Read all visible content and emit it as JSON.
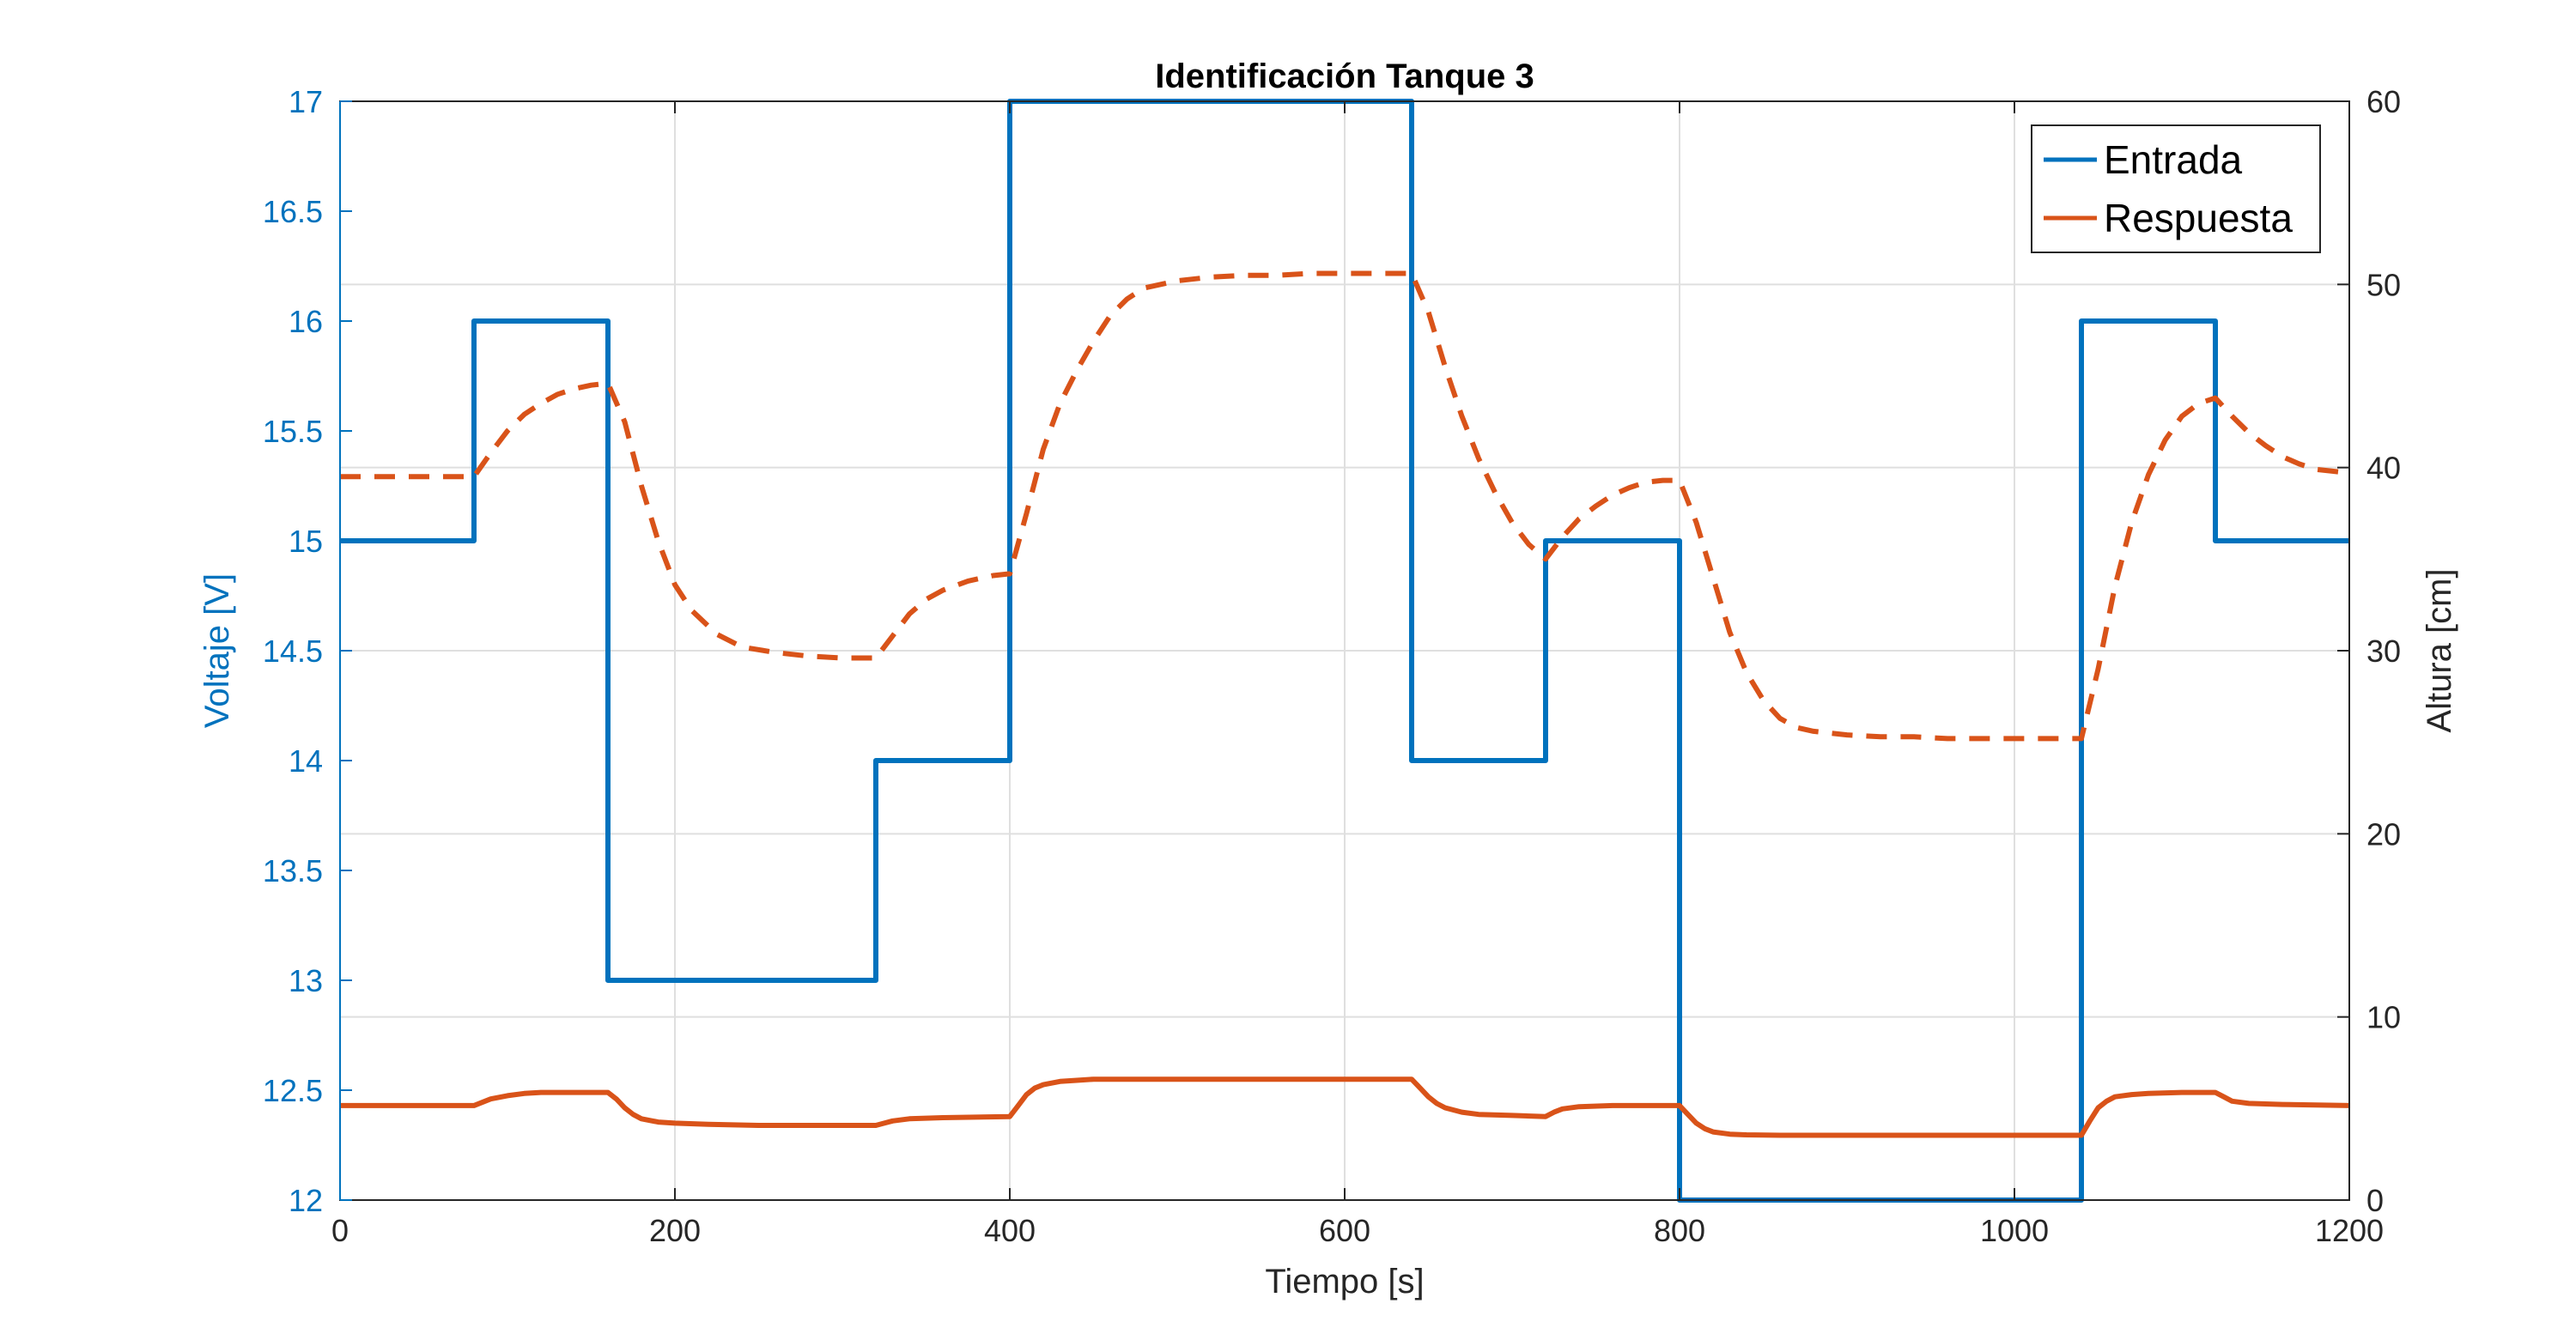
{
  "chart_data": {
    "type": "line",
    "title": "Identificación Tanque 3",
    "xlabel": "Tiempo [s]",
    "ylabel_left": "Voltaje [V]",
    "ylabel_right": "Altura [cm]",
    "xlim": [
      0,
      1200
    ],
    "ylim_left": [
      12,
      17
    ],
    "ylim_right": [
      0,
      60
    ],
    "x_ticks": [
      0,
      200,
      400,
      600,
      800,
      1000,
      1200
    ],
    "y_left_ticks": [
      12,
      12.5,
      13,
      13.5,
      14,
      14.5,
      15,
      15.5,
      16,
      16.5,
      17
    ],
    "y_right_ticks": [
      0,
      10,
      20,
      30,
      40,
      50,
      60
    ],
    "grid": true,
    "legend_position": "top-right",
    "colors": {
      "entrada": "#0072BD",
      "respuesta": "#D95319",
      "left_axis": "#0072BD",
      "right_axis": "#262626"
    },
    "legend": [
      "Entrada",
      "Respuesta"
    ],
    "series": [
      {
        "name": "Entrada",
        "axis": "left",
        "style": "solid",
        "x": [
          0,
          80,
          80,
          160,
          160,
          320,
          320,
          400,
          400,
          640,
          640,
          720,
          720,
          800,
          800,
          1040,
          1040,
          1120,
          1120,
          1200
        ],
        "y": [
          15,
          15,
          16,
          16,
          13,
          13,
          14,
          14,
          17,
          17,
          14,
          14,
          15,
          15,
          12,
          12,
          16,
          16,
          15,
          15
        ]
      },
      {
        "name": "Respuesta",
        "axis": "right",
        "style": "dashed",
        "x": [
          0,
          80,
          90,
          100,
          110,
          120,
          130,
          140,
          150,
          160,
          170,
          180,
          190,
          200,
          210,
          225,
          240,
          260,
          280,
          300,
          320,
          330,
          340,
          350,
          360,
          375,
          390,
          400,
          410,
          420,
          430,
          440,
          450,
          460,
          470,
          480,
          500,
          520,
          540,
          560,
          580,
          600,
          620,
          640,
          650,
          660,
          670,
          680,
          690,
          700,
          710,
          720,
          730,
          740,
          750,
          760,
          770,
          780,
          790,
          800,
          810,
          820,
          830,
          840,
          850,
          860,
          870,
          880,
          900,
          920,
          940,
          960,
          980,
          1000,
          1020,
          1040,
          1050,
          1060,
          1070,
          1080,
          1090,
          1100,
          1110,
          1120,
          1130,
          1140,
          1150,
          1160,
          1170,
          1180,
          1190,
          1200
        ],
        "y": [
          39.5,
          39.5,
          40.8,
          42.0,
          42.9,
          43.5,
          44.0,
          44.3,
          44.5,
          44.6,
          42.5,
          39.0,
          36.0,
          33.6,
          32.2,
          30.9,
          30.2,
          29.9,
          29.7,
          29.6,
          29.6,
          30.8,
          32.0,
          32.8,
          33.3,
          33.8,
          34.1,
          34.2,
          37.5,
          41.0,
          43.5,
          45.3,
          46.9,
          48.3,
          49.2,
          49.8,
          50.2,
          50.4,
          50.5,
          50.5,
          50.6,
          50.6,
          50.6,
          50.6,
          48.5,
          45.5,
          42.8,
          40.5,
          38.6,
          37.0,
          35.8,
          35.0,
          36.2,
          37.2,
          37.9,
          38.5,
          38.9,
          39.2,
          39.3,
          39.3,
          37.0,
          34.0,
          31.0,
          28.8,
          27.3,
          26.3,
          25.8,
          25.6,
          25.4,
          25.3,
          25.3,
          25.2,
          25.2,
          25.2,
          25.2,
          25.2,
          29.0,
          33.5,
          37.0,
          39.6,
          41.5,
          42.8,
          43.5,
          43.8,
          42.8,
          41.9,
          41.2,
          40.6,
          40.2,
          39.9,
          39.8,
          39.7
        ]
      },
      {
        "name": "",
        "axis": "left",
        "style": "solid",
        "x": [
          0,
          80,
          90,
          100,
          110,
          120,
          140,
          160,
          165,
          170,
          175,
          180,
          190,
          200,
          220,
          250,
          280,
          320,
          325,
          330,
          340,
          360,
          400,
          405,
          410,
          415,
          420,
          430,
          440,
          450,
          460,
          480,
          520,
          560,
          600,
          640,
          645,
          650,
          655,
          660,
          670,
          680,
          700,
          720,
          725,
          730,
          740,
          760,
          800,
          805,
          810,
          815,
          820,
          830,
          840,
          860,
          900,
          950,
          1000,
          1040,
          1045,
          1050,
          1055,
          1060,
          1070,
          1080,
          1100,
          1120,
          1125,
          1130,
          1140,
          1160,
          1200
        ],
        "y": [
          12.43,
          12.43,
          12.46,
          12.475,
          12.485,
          12.49,
          12.49,
          12.49,
          12.46,
          12.42,
          12.39,
          12.37,
          12.355,
          12.35,
          12.345,
          12.34,
          12.34,
          12.34,
          12.35,
          12.36,
          12.37,
          12.375,
          12.38,
          12.43,
          12.48,
          12.51,
          12.525,
          12.54,
          12.545,
          12.55,
          12.55,
          12.55,
          12.55,
          12.55,
          12.55,
          12.55,
          12.51,
          12.47,
          12.44,
          12.42,
          12.4,
          12.39,
          12.385,
          12.38,
          12.4,
          12.415,
          12.425,
          12.43,
          12.43,
          12.39,
          12.35,
          12.325,
          12.31,
          12.3,
          12.297,
          12.295,
          12.295,
          12.295,
          12.295,
          12.295,
          12.36,
          12.42,
          12.45,
          12.47,
          12.48,
          12.485,
          12.49,
          12.49,
          12.47,
          12.45,
          12.44,
          12.435,
          12.43
        ]
      }
    ]
  }
}
